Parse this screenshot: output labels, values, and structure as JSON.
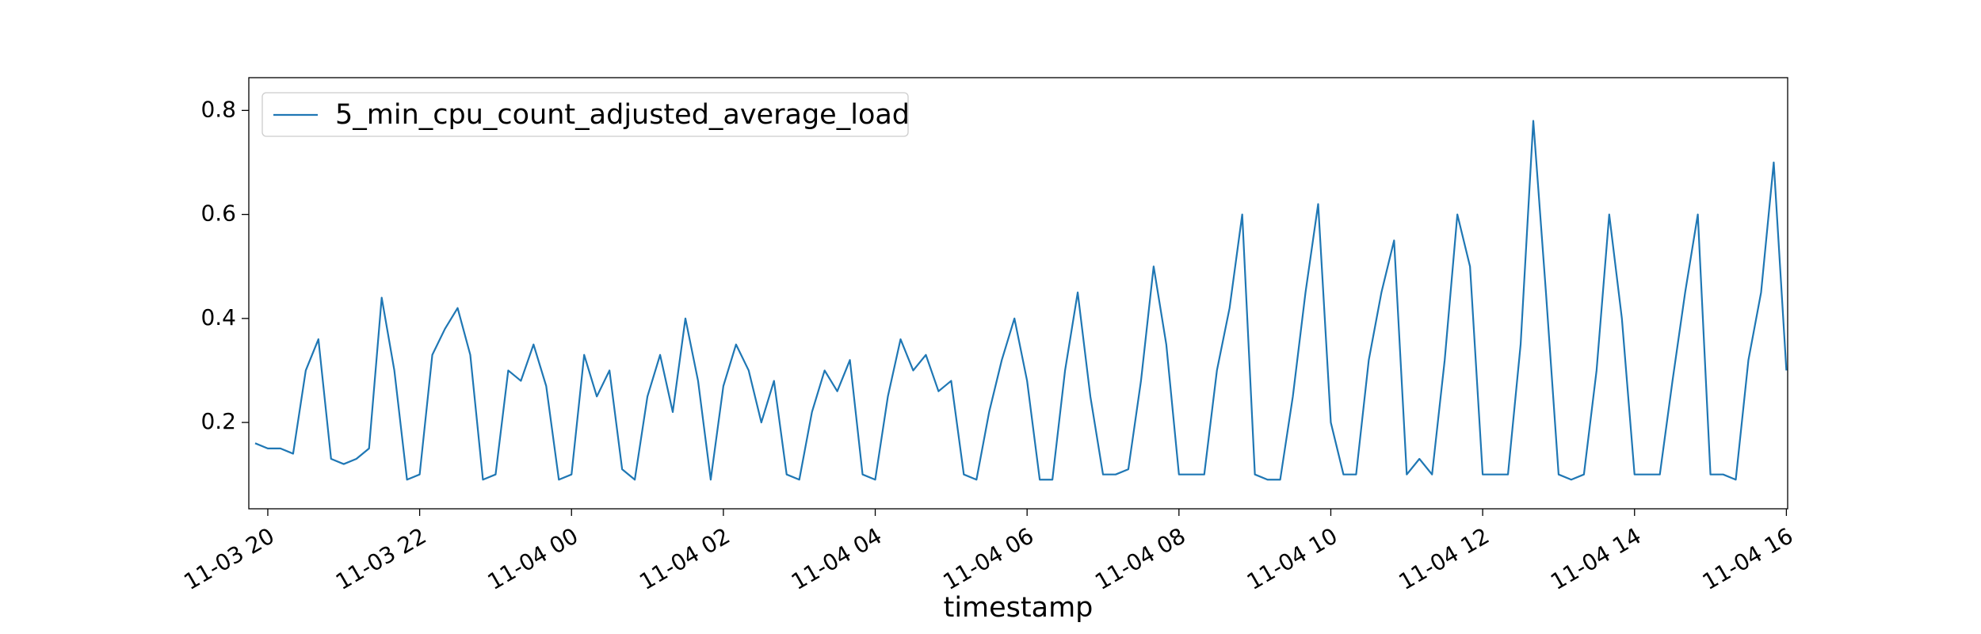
{
  "chart_data": {
    "type": "line",
    "xlabel": "timestamp",
    "x": [
      "11-03 19:50",
      "11-03 20:00",
      "11-03 20:10",
      "11-03 20:20",
      "11-03 20:30",
      "11-03 20:40",
      "11-03 20:50",
      "11-03 21:00",
      "11-03 21:10",
      "11-03 21:20",
      "11-03 21:30",
      "11-03 21:40",
      "11-03 21:50",
      "11-03 22:00",
      "11-03 22:10",
      "11-03 22:20",
      "11-03 22:30",
      "11-03 22:40",
      "11-03 22:50",
      "11-03 23:00",
      "11-03 23:10",
      "11-03 23:20",
      "11-03 23:30",
      "11-03 23:40",
      "11-03 23:50",
      "11-04 00:00",
      "11-04 00:10",
      "11-04 00:20",
      "11-04 00:30",
      "11-04 00:40",
      "11-04 00:50",
      "11-04 01:00",
      "11-04 01:10",
      "11-04 01:20",
      "11-04 01:30",
      "11-04 01:40",
      "11-04 01:50",
      "11-04 02:00",
      "11-04 02:10",
      "11-04 02:20",
      "11-04 02:30",
      "11-04 02:40",
      "11-04 02:50",
      "11-04 03:00",
      "11-04 03:10",
      "11-04 03:20",
      "11-04 03:30",
      "11-04 03:40",
      "11-04 03:50",
      "11-04 04:00",
      "11-04 04:10",
      "11-04 04:20",
      "11-04 04:30",
      "11-04 04:40",
      "11-04 04:50",
      "11-04 05:00",
      "11-04 05:10",
      "11-04 05:20",
      "11-04 05:30",
      "11-04 05:40",
      "11-04 05:50",
      "11-04 06:00",
      "11-04 06:10",
      "11-04 06:20",
      "11-04 06:30",
      "11-04 06:40",
      "11-04 06:50",
      "11-04 07:00",
      "11-04 07:10",
      "11-04 07:20",
      "11-04 07:30",
      "11-04 07:40",
      "11-04 07:50",
      "11-04 08:00",
      "11-04 08:10",
      "11-04 08:20",
      "11-04 08:30",
      "11-04 08:40",
      "11-04 08:50",
      "11-04 09:00",
      "11-04 09:10",
      "11-04 09:20",
      "11-04 09:30",
      "11-04 09:40",
      "11-04 09:50",
      "11-04 10:00",
      "11-04 10:10",
      "11-04 10:20",
      "11-04 10:30",
      "11-04 10:40",
      "11-04 10:50",
      "11-04 11:00",
      "11-04 11:10",
      "11-04 11:20",
      "11-04 11:30",
      "11-04 11:40",
      "11-04 11:50",
      "11-04 12:00",
      "11-04 12:10",
      "11-04 12:20",
      "11-04 12:30",
      "11-04 12:40",
      "11-04 12:50",
      "11-04 13:00",
      "11-04 13:10",
      "11-04 13:20",
      "11-04 13:30",
      "11-04 13:40",
      "11-04 13:50",
      "11-04 14:00",
      "11-04 14:10",
      "11-04 14:20",
      "11-04 14:30",
      "11-04 14:40",
      "11-04 14:50",
      "11-04 15:00",
      "11-04 15:10",
      "11-04 15:20",
      "11-04 15:30",
      "11-04 15:40",
      "11-04 15:50",
      "11-04 16:00"
    ],
    "series": [
      {
        "name": "5_min_cpu_count_adjusted_average_load",
        "color": "#1f77b4",
        "values": [
          0.16,
          0.15,
          0.15,
          0.14,
          0.3,
          0.36,
          0.13,
          0.12,
          0.13,
          0.15,
          0.44,
          0.3,
          0.09,
          0.1,
          0.33,
          0.38,
          0.42,
          0.33,
          0.09,
          0.1,
          0.3,
          0.28,
          0.35,
          0.27,
          0.09,
          0.1,
          0.33,
          0.25,
          0.3,
          0.11,
          0.09,
          0.25,
          0.33,
          0.22,
          0.4,
          0.28,
          0.09,
          0.27,
          0.35,
          0.3,
          0.2,
          0.28,
          0.1,
          0.09,
          0.22,
          0.3,
          0.26,
          0.32,
          0.1,
          0.09,
          0.25,
          0.36,
          0.3,
          0.33,
          0.26,
          0.28,
          0.1,
          0.09,
          0.22,
          0.32,
          0.4,
          0.28,
          0.09,
          0.09,
          0.3,
          0.45,
          0.25,
          0.1,
          0.1,
          0.11,
          0.28,
          0.5,
          0.35,
          0.1,
          0.1,
          0.1,
          0.3,
          0.42,
          0.6,
          0.1,
          0.09,
          0.09,
          0.25,
          0.45,
          0.62,
          0.2,
          0.1,
          0.1,
          0.32,
          0.45,
          0.55,
          0.1,
          0.13,
          0.1,
          0.32,
          0.6,
          0.5,
          0.1,
          0.1,
          0.1,
          0.35,
          0.78,
          0.45,
          0.1,
          0.09,
          0.1,
          0.3,
          0.6,
          0.4,
          0.1,
          0.1,
          0.1,
          0.28,
          0.45,
          0.6,
          0.1,
          0.1,
          0.09,
          0.32,
          0.45,
          0.7,
          0.3
        ]
      }
    ],
    "xlim": [
      "11-03 19:45",
      "11-04 16:01"
    ],
    "xticks": [
      "11-03 20",
      "11-03 22",
      "11-04 00",
      "11-04 02",
      "11-04 04",
      "11-04 06",
      "11-04 08",
      "11-04 10",
      "11-04 12",
      "11-04 14",
      "11-04 16"
    ],
    "ylim": [
      0.034,
      0.863
    ],
    "yticks": [
      0.2,
      0.4,
      0.6,
      0.8
    ],
    "legend": "upper left"
  }
}
